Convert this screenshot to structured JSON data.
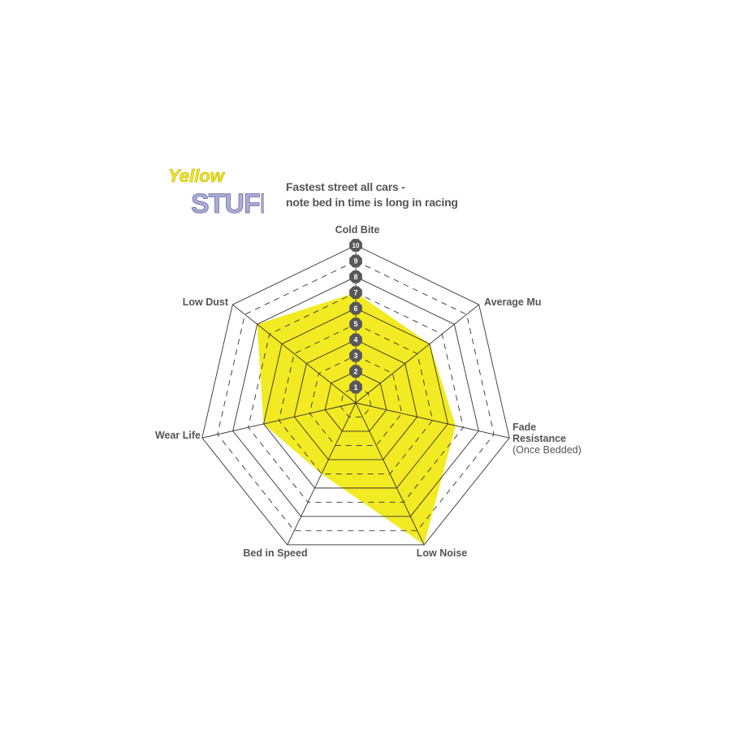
{
  "logo": {
    "line1": "Yellow",
    "line2": "STUFF"
  },
  "subtitle": [
    "Fastest street all cars -",
    "note bed in time is long in racing"
  ],
  "chart_data": {
    "type": "radar",
    "axes": [
      "Cold Bite",
      "Average Mu",
      "Fade Resistance",
      "Low Noise",
      "Bed in Speed",
      "Wear Life",
      "Low Dust"
    ],
    "axis_sublabels": {
      "Fade Resistance": "(Once Bedded)"
    },
    "values": [
      7,
      6,
      6.5,
      10,
      5,
      6,
      8
    ],
    "range": [
      0,
      10
    ],
    "ticks": [
      "1",
      "2",
      "3",
      "4",
      "5",
      "6",
      "7",
      "8",
      "9",
      "10"
    ],
    "grid": "solid on even levels, dashed on odd levels",
    "fill_color": "#f2ea22",
    "grid_color": "#333333",
    "badge_color": "#58585a",
    "label_color": "#555555"
  }
}
